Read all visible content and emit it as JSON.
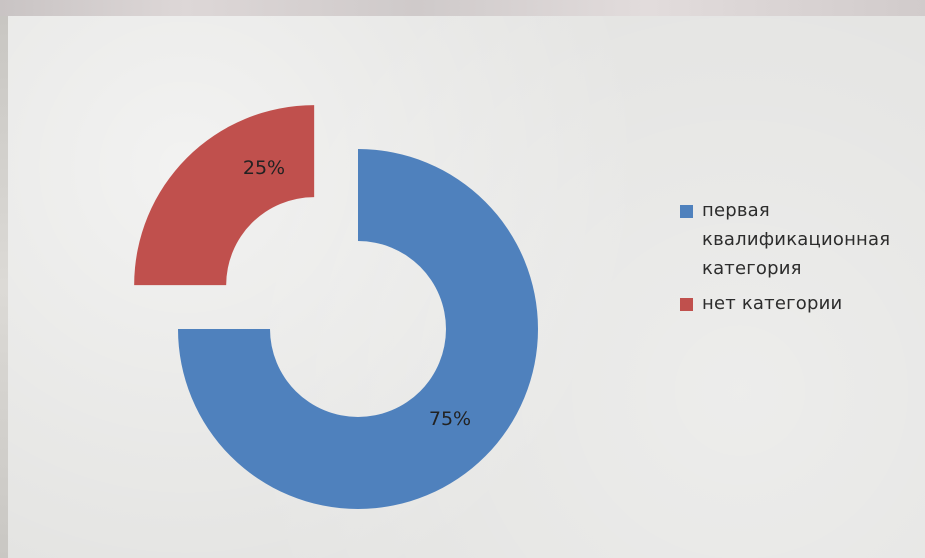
{
  "chart_data": {
    "type": "pie",
    "variant": "exploded-doughnut",
    "title": "",
    "series": [
      {
        "values": [
          75,
          25
        ],
        "data_labels": [
          "75%",
          "25%"
        ]
      }
    ],
    "categories": [
      "первая квалификационная категория",
      "нет категории"
    ],
    "colors": [
      "#4f81bd",
      "#c0504d"
    ],
    "legend_position": "right"
  },
  "legend": {
    "items": [
      {
        "label": "первая квалификационная категория",
        "color": "#4f81bd"
      },
      {
        "label": "нет категории",
        "color": "#c0504d"
      }
    ]
  }
}
